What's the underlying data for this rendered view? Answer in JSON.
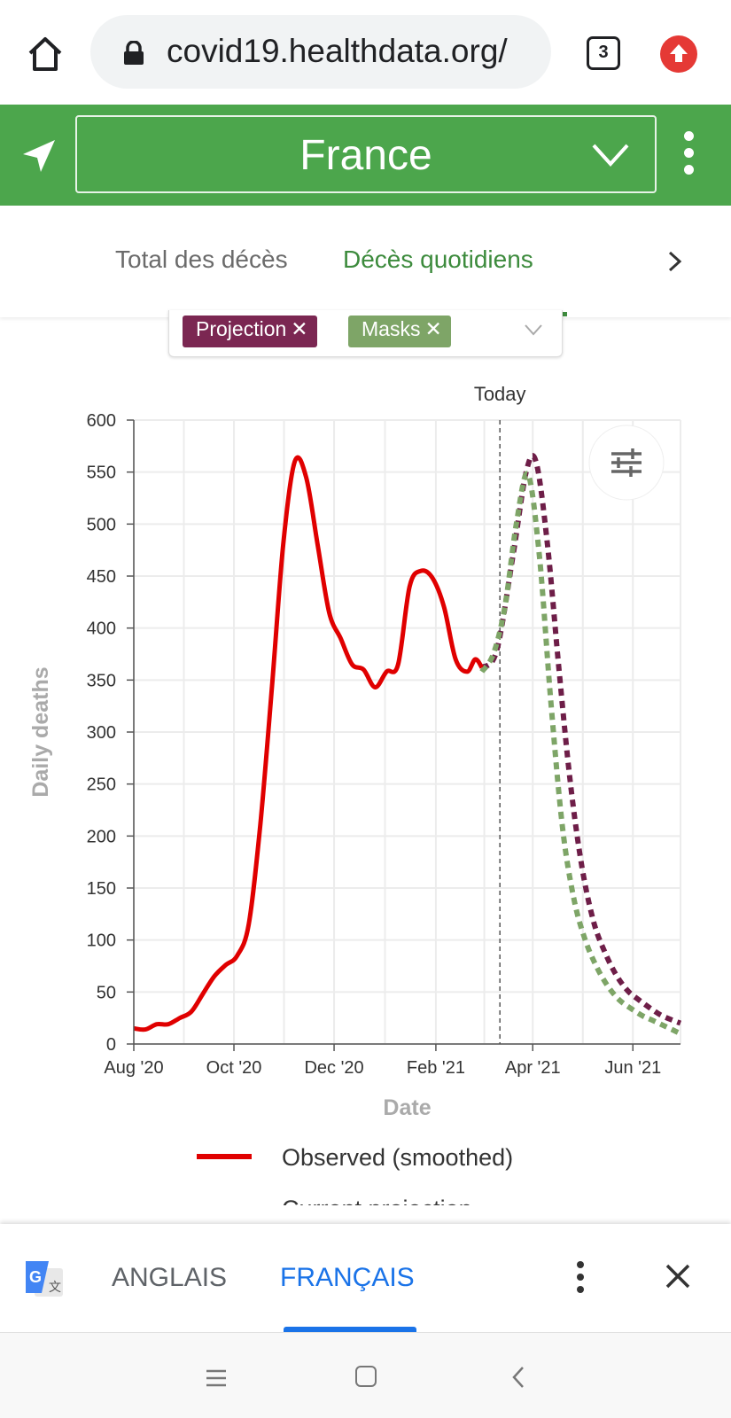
{
  "browser": {
    "url": "covid19.healthdata.org/",
    "tab_count": "3"
  },
  "header": {
    "location": "France"
  },
  "tabs": [
    {
      "label": "Total des décès",
      "active": false
    },
    {
      "label": "Décès quotidiens",
      "active": true
    }
  ],
  "filters": {
    "chips": [
      {
        "label": "Projection",
        "color": "#7b2752"
      },
      {
        "label": "Masks",
        "color": "#7ea567"
      }
    ]
  },
  "chart_data": {
    "type": "line",
    "xlabel": "Date",
    "ylabel": "Daily deaths",
    "ylim": [
      0,
      600
    ],
    "yticks": [
      0,
      50,
      100,
      150,
      200,
      250,
      300,
      350,
      400,
      450,
      500,
      550,
      600
    ],
    "xlim": [
      "2020-08-01",
      "2021-06-30"
    ],
    "xticks": [
      {
        "date": "2020-08-01",
        "label": "Aug '20"
      },
      {
        "date": "2020-10-01",
        "label": "Oct '20"
      },
      {
        "date": "2020-12-01",
        "label": "Dec '20"
      },
      {
        "date": "2021-02-01",
        "label": "Feb '21"
      },
      {
        "date": "2021-04-01",
        "label": "Apr '21"
      },
      {
        "date": "2021-06-01",
        "label": "Jun '21"
      }
    ],
    "today_label": "Today",
    "today_date": "2021-03-12",
    "grid": true,
    "series": [
      {
        "name": "Observed (smoothed)",
        "color": "#e00000",
        "style": "solid",
        "points": [
          [
            "2020-08-01",
            15
          ],
          [
            "2020-08-08",
            14
          ],
          [
            "2020-08-15",
            19
          ],
          [
            "2020-08-22",
            19
          ],
          [
            "2020-08-29",
            25
          ],
          [
            "2020-09-05",
            31
          ],
          [
            "2020-09-12",
            48
          ],
          [
            "2020-09-19",
            65
          ],
          [
            "2020-09-26",
            76
          ],
          [
            "2020-10-03",
            85
          ],
          [
            "2020-10-10",
            115
          ],
          [
            "2020-10-17",
            210
          ],
          [
            "2020-10-24",
            340
          ],
          [
            "2020-10-31",
            480
          ],
          [
            "2020-11-07",
            560
          ],
          [
            "2020-11-14",
            545
          ],
          [
            "2020-11-21",
            480
          ],
          [
            "2020-11-28",
            415
          ],
          [
            "2020-12-05",
            390
          ],
          [
            "2020-12-12",
            365
          ],
          [
            "2020-12-19",
            360
          ],
          [
            "2020-12-26",
            343
          ],
          [
            "2021-01-02",
            358
          ],
          [
            "2021-01-09",
            365
          ],
          [
            "2021-01-16",
            440
          ],
          [
            "2021-01-23",
            455
          ],
          [
            "2021-01-30",
            448
          ],
          [
            "2021-02-06",
            420
          ],
          [
            "2021-02-13",
            370
          ],
          [
            "2021-02-20",
            358
          ],
          [
            "2021-02-25",
            370
          ],
          [
            "2021-03-01",
            362
          ]
        ]
      },
      {
        "name": "Current projection",
        "color": "#6e1e48",
        "style": "dashed",
        "points": [
          [
            "2021-03-01",
            362
          ],
          [
            "2021-03-10",
            378
          ],
          [
            "2021-03-20",
            470
          ],
          [
            "2021-03-28",
            550
          ],
          [
            "2021-04-03",
            560
          ],
          [
            "2021-04-10",
            480
          ],
          [
            "2021-04-17",
            360
          ],
          [
            "2021-04-24",
            250
          ],
          [
            "2021-05-01",
            170
          ],
          [
            "2021-05-08",
            118
          ],
          [
            "2021-05-15",
            88
          ],
          [
            "2021-05-22",
            66
          ],
          [
            "2021-05-29",
            51
          ],
          [
            "2021-06-05",
            42
          ],
          [
            "2021-06-12",
            34
          ],
          [
            "2021-06-19",
            27
          ],
          [
            "2021-06-30",
            20
          ]
        ]
      },
      {
        "name": "Masks",
        "color": "#7ea567",
        "style": "dashed",
        "points": [
          [
            "2021-03-01",
            358
          ],
          [
            "2021-03-08",
            375
          ],
          [
            "2021-03-15",
            420
          ],
          [
            "2021-03-22",
            500
          ],
          [
            "2021-03-29",
            548
          ],
          [
            "2021-04-05",
            470
          ],
          [
            "2021-04-12",
            330
          ],
          [
            "2021-04-19",
            210
          ],
          [
            "2021-04-26",
            140
          ],
          [
            "2021-05-03",
            100
          ],
          [
            "2021-05-10",
            74
          ],
          [
            "2021-05-17",
            55
          ],
          [
            "2021-05-24",
            42
          ],
          [
            "2021-05-31",
            34
          ],
          [
            "2021-06-07",
            27
          ],
          [
            "2021-06-14",
            22
          ],
          [
            "2021-06-30",
            10
          ]
        ]
      }
    ],
    "legend": [
      {
        "label": "Observed (smoothed)",
        "color": "#e00000",
        "style": "solid"
      },
      {
        "label": "Current projection",
        "color": "#6e1e48",
        "style": "dashed"
      }
    ]
  },
  "translate_bar": {
    "lang_source": "ANGLAIS",
    "lang_target": "FRANÇAIS"
  }
}
